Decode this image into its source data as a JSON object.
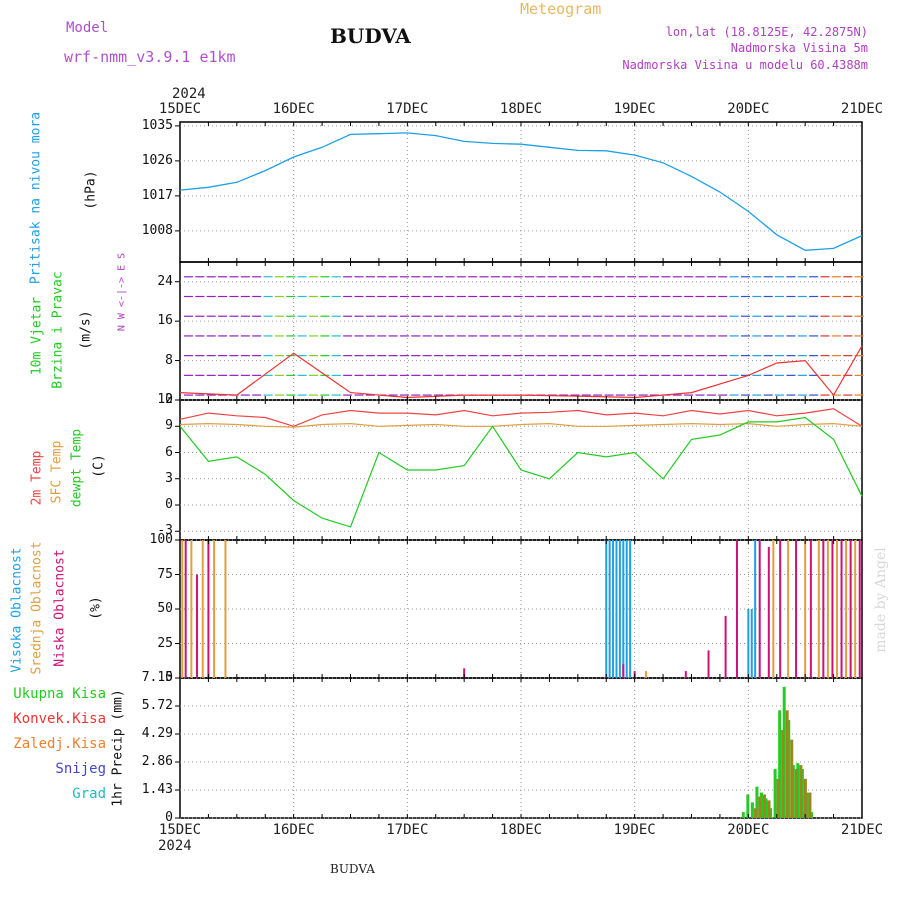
{
  "header": {
    "model_label": "Model",
    "model_name": "wrf-nmm_v3.9.1 e1km",
    "station": "BUDVA",
    "product": "Meteogram",
    "lonlat": "lon,lat (18.8125E, 42.2875N)",
    "altitude": "Nadmorska Visina 5m",
    "model_altitude": "Nadmorska Visina u modelu 60.4388m",
    "footer_station": "BUDVA",
    "credit": "made by Angel",
    "colors": {
      "model": "#b04fd0",
      "title": "#111111",
      "product": "#e8b860",
      "info": "#b040c0"
    }
  },
  "time_axis": {
    "year": "2024",
    "ticks": [
      "15DEC",
      "16DEC",
      "17DEC",
      "18DEC",
      "19DEC",
      "20DEC",
      "21DEC"
    ]
  },
  "labels": {
    "pressure": {
      "name": "Pritisak na nivou mora",
      "unit": "(hPa)",
      "color": "#1ea0e6"
    },
    "wind": {
      "name1": "10m Vjetar",
      "name2": "Brzina i Pravac",
      "unit": "(m/s)",
      "color": "#22cc22",
      "compass": "N  W <-|-> E  S"
    },
    "temp": {
      "t2m": "2m Temp",
      "sfc": "SFC Temp",
      "dew": "dewpt Temp",
      "unit": "(C)"
    },
    "cloud": {
      "high": "Visoka Oblacnost",
      "mid": "Srednja Oblacnost",
      "low": "Niska Oblacnost",
      "unit": "(%)"
    },
    "precip": {
      "legend": [
        "Ukupna Kisa",
        "Konvek.Kisa",
        "Zaledj.Kisa",
        "Snijeg",
        "Grad"
      ],
      "legend_colors": [
        "#22cc22",
        "#ee3333",
        "#f08030",
        "#4444cc",
        "#22bbbb"
      ],
      "ylabel": "1hr Precip (mm)"
    }
  },
  "chart_data": [
    {
      "type": "line",
      "title": "Pritisak na nivou mora",
      "ylabel": "(hPa)",
      "ylim": [
        1000,
        1036
      ],
      "yticks": [
        "1035",
        "1026",
        "1017",
        "1008"
      ],
      "x_days": [
        0,
        0.25,
        0.5,
        0.75,
        1.0,
        1.25,
        1.5,
        1.75,
        2.0,
        2.25,
        2.5,
        2.75,
        3.0,
        3.25,
        3.5,
        3.75,
        4.0,
        4.25,
        4.5,
        4.75,
        5.0,
        5.25,
        5.5,
        5.75,
        6.0
      ],
      "series": [
        {
          "color": "#1ea0e6",
          "values": [
            1018.5,
            1019.2,
            1020.5,
            1023.5,
            1027.0,
            1029.5,
            1032.8,
            1033.0,
            1033.2,
            1032.5,
            1031.0,
            1030.5,
            1030.3,
            1029.5,
            1028.7,
            1028.6,
            1027.5,
            1025.5,
            1022.0,
            1018.0,
            1013.0,
            1007.0,
            1003.0,
            1003.5,
            1006.8
          ]
        }
      ]
    },
    {
      "type": "scatter",
      "title": "10m Vjetar Brzina i Pravac",
      "ylabel": "(m/s)",
      "ylim": [
        0,
        28
      ],
      "yticks": [
        "24",
        "16",
        "8",
        "0"
      ],
      "x_days": [
        0,
        0.5,
        1.0,
        1.5,
        2.0,
        2.5,
        3.0,
        3.5,
        4.0,
        4.5,
        5.0,
        5.25,
        5.5,
        5.75,
        6.0
      ],
      "series": [
        {
          "name": "speed",
          "color": "#ee3333",
          "values": [
            1.5,
            1.0,
            9.5,
            1.5,
            0.5,
            1.0,
            1.0,
            0.8,
            0.5,
            1.5,
            5.0,
            7.5,
            8.0,
            1.0,
            11.0
          ]
        }
      ]
    },
    {
      "type": "line",
      "title": "Temp",
      "ylabel": "(C)",
      "ylim": [
        -4,
        12
      ],
      "yticks": [
        "12",
        "9",
        "6",
        "3",
        "0",
        "-3"
      ],
      "x_days": [
        0,
        0.25,
        0.5,
        0.75,
        1.0,
        1.25,
        1.5,
        1.75,
        2.0,
        2.25,
        2.5,
        2.75,
        3.0,
        3.25,
        3.5,
        3.75,
        4.0,
        4.25,
        4.5,
        4.75,
        5.0,
        5.25,
        5.5,
        5.75,
        6.0
      ],
      "series": [
        {
          "name": "2m Temp",
          "color": "#ee4444",
          "values": [
            9.8,
            10.5,
            10.2,
            10.0,
            9.0,
            10.3,
            10.8,
            10.5,
            10.5,
            10.3,
            10.8,
            10.2,
            10.5,
            10.6,
            10.8,
            10.3,
            10.5,
            10.2,
            10.8,
            10.4,
            10.8,
            10.2,
            10.5,
            11.0,
            9.0
          ]
        },
        {
          "name": "SFC Temp",
          "color": "#e0a040",
          "values": [
            9.2,
            9.3,
            9.2,
            9.0,
            8.9,
            9.2,
            9.3,
            9.0,
            9.1,
            9.2,
            9.0,
            9.0,
            9.2,
            9.3,
            9.0,
            9.0,
            9.1,
            9.2,
            9.3,
            9.2,
            9.3,
            9.0,
            9.2,
            9.3,
            9.0
          ]
        },
        {
          "name": "dewpt Temp",
          "color": "#22cc22",
          "values": [
            9.0,
            5.0,
            5.5,
            3.5,
            0.5,
            -1.5,
            -2.5,
            6.0,
            4.0,
            4.0,
            4.5,
            9.0,
            4.0,
            3.0,
            6.0,
            5.5,
            6.0,
            3.0,
            7.5,
            8.0,
            9.5,
            9.5,
            10.0,
            7.5,
            1.0
          ]
        }
      ]
    },
    {
      "type": "bar",
      "title": "Oblacnost",
      "ylabel": "(%)",
      "ylim": [
        0,
        100
      ],
      "yticks": [
        "100",
        "75",
        "50",
        "25",
        "0"
      ],
      "series": [
        {
          "name": "Visoka Oblacnost",
          "color": "#1ea0e6",
          "x_days": [
            3.75,
            3.78,
            3.81,
            3.84,
            3.87,
            3.9,
            3.93,
            3.96,
            5.0,
            5.03,
            5.06
          ],
          "values": [
            100,
            100,
            100,
            100,
            100,
            100,
            100,
            100,
            50,
            50,
            100
          ]
        },
        {
          "name": "Srednja Oblacnost",
          "color": "#e0a040",
          "x_days": [
            0.02,
            0.1,
            0.2,
            0.3,
            0.4,
            4.1,
            5.22,
            5.35,
            5.5,
            5.62,
            5.7,
            5.78,
            5.86,
            5.94
          ],
          "values": [
            100,
            100,
            100,
            100,
            100,
            5,
            100,
            100,
            100,
            100,
            100,
            100,
            100,
            100
          ]
        },
        {
          "name": "Niska Oblacnost",
          "color": "#cc1177",
          "x_days": [
            0.05,
            0.15,
            0.25,
            2.5,
            3.9,
            4.0,
            4.45,
            4.65,
            4.8,
            4.9,
            5.1,
            5.18,
            5.28,
            5.42,
            5.55,
            5.66,
            5.74,
            5.82,
            5.9,
            5.98
          ],
          "values": [
            100,
            75,
            100,
            7,
            10,
            5,
            5,
            20,
            45,
            100,
            100,
            95,
            100,
            100,
            100,
            100,
            100,
            100,
            100,
            100
          ]
        }
      ]
    },
    {
      "type": "bar",
      "title": "1hr Precip (mm)",
      "ylabel": "1hr Precip (mm)",
      "ylim": [
        0,
        7.15
      ],
      "yticks": [
        "7.15",
        "5.72",
        "4.29",
        "2.86",
        "1.43",
        "0"
      ],
      "x_days": [
        4.96,
        5.0,
        5.04,
        5.08,
        5.12,
        5.16,
        5.2,
        5.24,
        5.28,
        5.32,
        5.36,
        5.4,
        5.44,
        5.48,
        5.52,
        5.56
      ],
      "series": [
        {
          "name": "Ukupna Kisa",
          "color": "#22cc22",
          "values": [
            0.3,
            1.2,
            0.8,
            1.6,
            1.3,
            1.0,
            0.5,
            2.5,
            5.5,
            6.7,
            5.0,
            2.7,
            2.8,
            2.5,
            1.3,
            0.3
          ]
        },
        {
          "name": "Konvek.Kisa",
          "color": "#998822",
          "values": [
            0.0,
            0.0,
            0.5,
            1.1,
            1.2,
            0.9,
            0.0,
            2.0,
            4.5,
            5.5,
            4.0,
            2.5,
            2.7,
            2.0,
            1.3,
            0.0
          ]
        }
      ]
    }
  ]
}
